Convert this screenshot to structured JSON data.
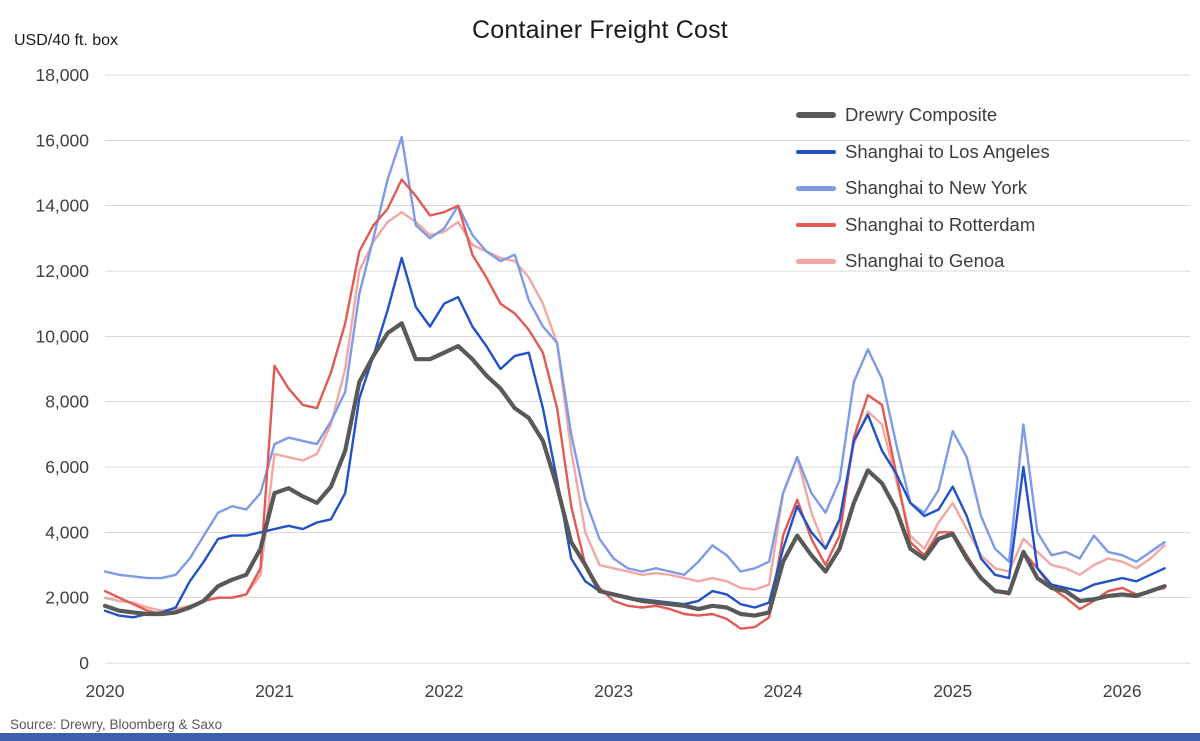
{
  "title": "Container Freight Cost",
  "source": "Source: Drewry, Bloomberg & Saxo",
  "footer_bar_color": "#3d5fac",
  "axis_text_color": "#404040",
  "gridline_color": "#d9d9d9",
  "chart_data": {
    "type": "line",
    "title": "Container Freight Cost",
    "ylabel": "USD/40 ft. box",
    "xlabel": "",
    "ylim": [
      0,
      18000
    ],
    "ytick_step": 2000,
    "xlim": [
      2020,
      2026.4
    ],
    "xticks": [
      2020,
      2021,
      2022,
      2023,
      2024,
      2025,
      2026
    ],
    "grid": "horizontal",
    "legend_position": "top-right-inside",
    "x": [
      2020.0,
      2020.083,
      2020.167,
      2020.25,
      2020.333,
      2020.417,
      2020.5,
      2020.583,
      2020.667,
      2020.75,
      2020.833,
      2020.917,
      2021.0,
      2021.083,
      2021.167,
      2021.25,
      2021.333,
      2021.417,
      2021.5,
      2021.583,
      2021.667,
      2021.75,
      2021.833,
      2021.917,
      2022.0,
      2022.083,
      2022.167,
      2022.25,
      2022.333,
      2022.417,
      2022.5,
      2022.583,
      2022.667,
      2022.75,
      2022.833,
      2022.917,
      2023.0,
      2023.083,
      2023.167,
      2023.25,
      2023.333,
      2023.417,
      2023.5,
      2023.583,
      2023.667,
      2023.75,
      2023.833,
      2023.917,
      2024.0,
      2024.083,
      2024.167,
      2024.25,
      2024.333,
      2024.417,
      2024.5,
      2024.583,
      2024.667,
      2024.75,
      2024.833,
      2024.917,
      2025.0,
      2025.083,
      2025.167,
      2025.25,
      2025.333,
      2025.417,
      2025.5,
      2025.583,
      2025.667,
      2025.75,
      2025.833,
      2025.917,
      2026.0,
      2026.083,
      2026.167,
      2026.25
    ],
    "series": [
      {
        "name": "Drewry Composite",
        "color": "#595959",
        "line_width": 4.2,
        "values": [
          1750,
          1600,
          1550,
          1500,
          1500,
          1550,
          1700,
          1900,
          2350,
          2550,
          2700,
          3500,
          5200,
          5350,
          5100,
          4900,
          5400,
          6500,
          8600,
          9400,
          10100,
          10400,
          9300,
          9300,
          9500,
          9700,
          9300,
          8800,
          8400,
          7800,
          7500,
          6800,
          5400,
          3700,
          3000,
          2200,
          2100,
          2000,
          1900,
          1850,
          1800,
          1750,
          1650,
          1750,
          1700,
          1500,
          1450,
          1550,
          3100,
          3900,
          3300,
          2800,
          3500,
          4900,
          5900,
          5500,
          4700,
          3500,
          3200,
          3800,
          3950,
          3200,
          2600,
          2200,
          2150,
          3400,
          2600,
          2300,
          2200,
          1900,
          1950,
          2050,
          2100,
          2050,
          2200,
          2350
        ]
      },
      {
        "name": "Shanghai to Los Angeles",
        "color": "#2152c8",
        "line_width": 2.4,
        "values": [
          1600,
          1450,
          1400,
          1500,
          1550,
          1700,
          2500,
          3100,
          3800,
          3900,
          3900,
          4000,
          4100,
          4200,
          4100,
          4300,
          4400,
          5200,
          8100,
          9400,
          10800,
          12400,
          10900,
          10300,
          11000,
          11200,
          10300,
          9700,
          9000,
          9400,
          9500,
          7800,
          5600,
          3200,
          2500,
          2200,
          2100,
          2000,
          1950,
          1900,
          1850,
          1800,
          1900,
          2200,
          2100,
          1800,
          1700,
          1850,
          3500,
          4800,
          4000,
          3500,
          4400,
          6800,
          7600,
          6500,
          5800,
          4900,
          4500,
          4700,
          5400,
          4500,
          3200,
          2700,
          2600,
          6000,
          2900,
          2400,
          2300,
          2200,
          2400,
          2500,
          2600,
          2500,
          2700,
          2900
        ]
      },
      {
        "name": "Shanghai to New York",
        "color": "#7d9be6",
        "line_width": 2.4,
        "values": [
          2800,
          2700,
          2650,
          2600,
          2600,
          2700,
          3200,
          3900,
          4600,
          4800,
          4700,
          5200,
          6700,
          6900,
          6800,
          6700,
          7400,
          8300,
          11300,
          13000,
          14800,
          16100,
          13400,
          13000,
          13300,
          14000,
          13100,
          12600,
          12300,
          12500,
          11100,
          10300,
          9800,
          7000,
          5000,
          3800,
          3200,
          2900,
          2800,
          2900,
          2800,
          2700,
          3100,
          3600,
          3300,
          2800,
          2900,
          3100,
          5200,
          6300,
          5200,
          4600,
          5600,
          8600,
          9600,
          8700,
          6700,
          4900,
          4600,
          5300,
          7100,
          6300,
          4500,
          3500,
          3100,
          7300,
          4000,
          3300,
          3400,
          3200,
          3900,
          3400,
          3300,
          3100,
          3400,
          3700
        ]
      },
      {
        "name": "Shanghai to Rotterdam",
        "color": "#e15a54",
        "line_width": 2.4,
        "values": [
          2200,
          2000,
          1800,
          1600,
          1500,
          1550,
          1700,
          1900,
          2000,
          2000,
          2100,
          2900,
          9100,
          8400,
          7900,
          7800,
          8900,
          10400,
          12600,
          13400,
          13900,
          14800,
          14300,
          13700,
          13800,
          14000,
          12500,
          11800,
          11000,
          10700,
          10200,
          9500,
          7800,
          4800,
          3000,
          2300,
          1900,
          1750,
          1700,
          1750,
          1650,
          1500,
          1450,
          1500,
          1350,
          1050,
          1100,
          1400,
          3900,
          5000,
          3800,
          3000,
          3900,
          6900,
          8200,
          7900,
          5800,
          3700,
          3300,
          4000,
          4000,
          3300,
          2600,
          2200,
          2100,
          3400,
          2900,
          2300,
          2000,
          1650,
          1900,
          2200,
          2300,
          2100,
          2200,
          2300
        ]
      },
      {
        "name": "Shanghai to Genoa",
        "color": "#f2a7a3",
        "line_width": 2.4,
        "values": [
          2000,
          1900,
          1850,
          1700,
          1600,
          1650,
          1750,
          1900,
          2000,
          2000,
          2100,
          2700,
          6400,
          6300,
          6200,
          6400,
          7300,
          9000,
          12000,
          12900,
          13500,
          13800,
          13500,
          13100,
          13200,
          13500,
          12800,
          12600,
          12400,
          12300,
          11800,
          11000,
          9800,
          6500,
          4000,
          3000,
          2900,
          2800,
          2700,
          2750,
          2700,
          2600,
          2500,
          2600,
          2500,
          2300,
          2250,
          2400,
          5200,
          6300,
          4600,
          3500,
          4300,
          6700,
          7700,
          7300,
          5600,
          3900,
          3500,
          4300,
          4900,
          4100,
          3300,
          2900,
          2800,
          3800,
          3400,
          3000,
          2900,
          2700,
          3000,
          3200,
          3100,
          2900,
          3200,
          3600
        ]
      }
    ]
  }
}
